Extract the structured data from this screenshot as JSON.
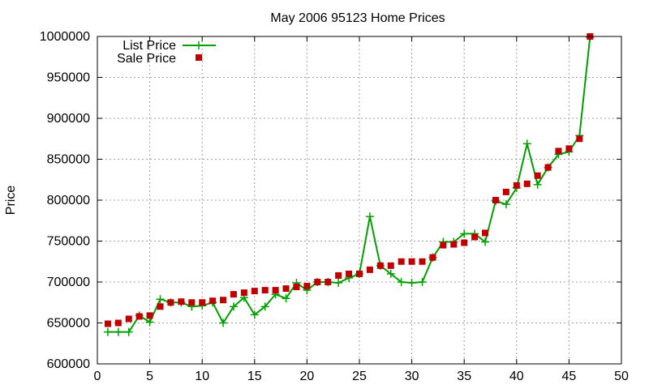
{
  "chart_data": {
    "type": "line",
    "title": "May 2006 95123 Home Prices",
    "xlabel": "",
    "ylabel": "Price",
    "xlim": [
      0,
      50
    ],
    "ylim": [
      600000,
      1000000
    ],
    "x_ticks": [
      0,
      5,
      10,
      15,
      20,
      25,
      30,
      35,
      40,
      45,
      50
    ],
    "y_ticks": [
      600000,
      650000,
      700000,
      750000,
      800000,
      850000,
      900000,
      950000,
      1000000
    ],
    "grid": true,
    "legend_position": "top-left",
    "x": [
      1,
      2,
      3,
      4,
      5,
      6,
      7,
      8,
      9,
      10,
      11,
      12,
      13,
      14,
      15,
      16,
      17,
      18,
      19,
      20,
      21,
      22,
      23,
      24,
      25,
      26,
      27,
      28,
      29,
      30,
      31,
      32,
      33,
      34,
      35,
      36,
      37,
      38,
      39,
      40,
      41,
      42,
      43,
      44,
      45,
      46,
      47
    ],
    "series": [
      {
        "name": "List Price",
        "style": "line-plus",
        "color": "#00a000",
        "values": [
          639000,
          639000,
          639000,
          659000,
          651000,
          679000,
          675000,
          675000,
          670000,
          671000,
          675000,
          650000,
          670000,
          681000,
          660000,
          670000,
          685000,
          680000,
          699000,
          690000,
          700000,
          700000,
          699000,
          705000,
          710000,
          780000,
          720000,
          710000,
          700000,
          699000,
          700000,
          730000,
          749000,
          749000,
          759000,
          759000,
          749000,
          799000,
          795000,
          815000,
          869000,
          819000,
          840000,
          856000,
          859000,
          879000,
          999000
        ]
      },
      {
        "name": "Sale Price",
        "style": "square-marker",
        "color": "#c00000",
        "values": [
          649000,
          650000,
          655000,
          658000,
          659000,
          670000,
          675000,
          676000,
          675000,
          675000,
          677000,
          678000,
          685000,
          687000,
          689000,
          690000,
          690000,
          692000,
          694000,
          695000,
          700000,
          700000,
          708000,
          710000,
          710000,
          715000,
          720000,
          720000,
          725000,
          725000,
          725000,
          730000,
          745000,
          746000,
          748000,
          755000,
          760000,
          800000,
          810000,
          818000,
          820000,
          830000,
          840000,
          860000,
          863000,
          875000,
          1000000
        ]
      }
    ]
  }
}
